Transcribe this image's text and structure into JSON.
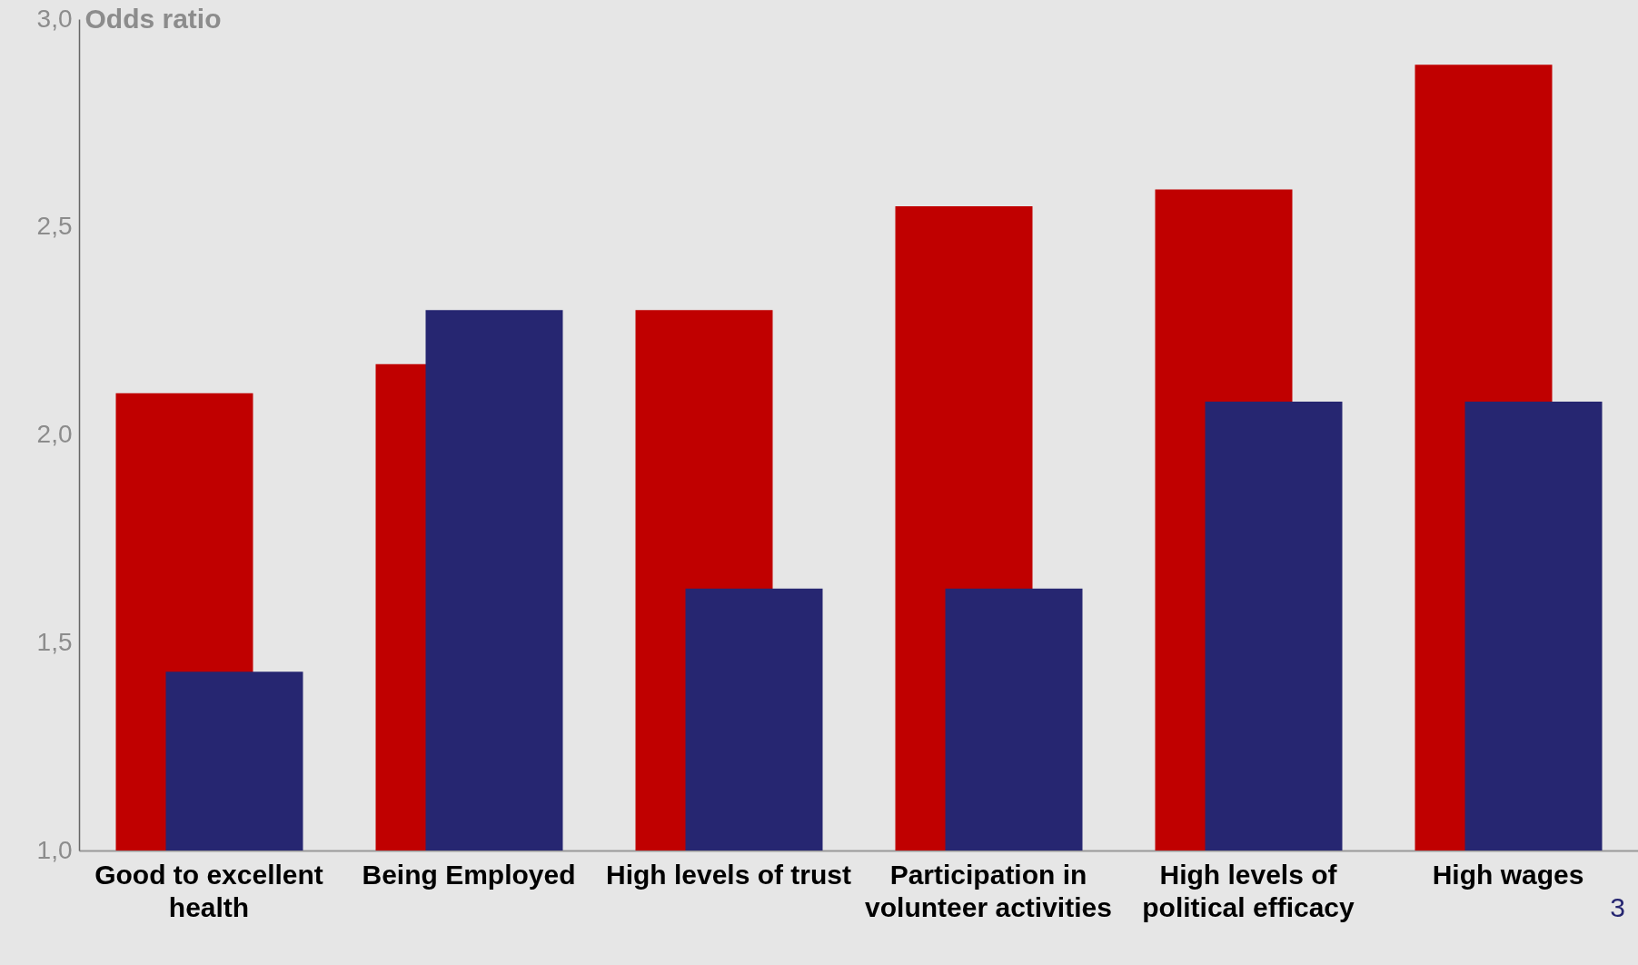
{
  "chart_data": {
    "type": "bar",
    "ylabel": "Odds ratio",
    "categories": [
      "Good to excellent health",
      "Being Employed",
      "High levels of trust",
      "Participation in volunteer activities",
      "High levels of political efficacy",
      "High wages"
    ],
    "series": [
      {
        "color": "#c00000",
        "values": [
          2.1,
          2.17,
          2.3,
          2.55,
          2.59,
          2.89
        ]
      },
      {
        "color": "#262671",
        "values": [
          1.43,
          2.3,
          1.63,
          1.63,
          2.08,
          2.08
        ]
      }
    ],
    "ylim": [
      1.0,
      3.0
    ],
    "yticks": [
      {
        "value": 1.0,
        "label": "1,0"
      },
      {
        "value": 1.5,
        "label": "1,5"
      },
      {
        "value": 2.0,
        "label": "2,0"
      },
      {
        "value": 2.5,
        "label": "2,5"
      },
      {
        "value": 3.0,
        "label": "3,0"
      }
    ],
    "grid": false,
    "annotations": [
      "3"
    ]
  }
}
